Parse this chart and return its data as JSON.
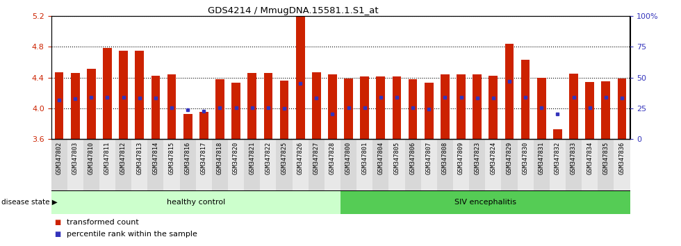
{
  "title": "GDS4214 / MmugDNA.15581.1.S1_at",
  "ylim": [
    3.6,
    5.2
  ],
  "yticks_left": [
    3.6,
    4.0,
    4.4,
    4.8,
    5.2
  ],
  "yticks_right_vals": [
    0,
    25,
    50,
    75,
    100
  ],
  "yticks_right_labels": [
    "0",
    "25",
    "50",
    "75",
    "100%"
  ],
  "bar_bottom": 3.6,
  "bar_color": "#cc2200",
  "dot_color": "#3333bb",
  "samples": [
    "GSM347802",
    "GSM347803",
    "GSM347810",
    "GSM347811",
    "GSM347812",
    "GSM347813",
    "GSM347814",
    "GSM347815",
    "GSM347816",
    "GSM347817",
    "GSM347818",
    "GSM347820",
    "GSM347821",
    "GSM347822",
    "GSM347825",
    "GSM347826",
    "GSM347827",
    "GSM347828",
    "GSM347800",
    "GSM347801",
    "GSM347804",
    "GSM347805",
    "GSM347806",
    "GSM347807",
    "GSM347808",
    "GSM347809",
    "GSM347823",
    "GSM347824",
    "GSM347829",
    "GSM347830",
    "GSM347831",
    "GSM347832",
    "GSM347833",
    "GSM347834",
    "GSM347835",
    "GSM347836"
  ],
  "bar_values": [
    4.47,
    4.46,
    4.51,
    4.78,
    4.75,
    4.75,
    4.42,
    4.44,
    3.93,
    3.95,
    4.38,
    4.33,
    4.46,
    4.46,
    4.36,
    5.19,
    4.47,
    4.44,
    4.39,
    4.41,
    4.41,
    4.41,
    4.38,
    4.33,
    4.44,
    4.44,
    4.44,
    4.42,
    4.84,
    4.63,
    4.4,
    3.73,
    4.45,
    4.34,
    4.35,
    4.39
  ],
  "dot_values": [
    4.11,
    4.12,
    4.14,
    4.14,
    4.14,
    4.13,
    4.13,
    4.01,
    3.98,
    3.96,
    4.01,
    4.01,
    4.01,
    4.01,
    4.0,
    4.32,
    4.13,
    3.93,
    4.01,
    4.01,
    4.14,
    4.14,
    4.01,
    3.99,
    4.14,
    4.14,
    4.13,
    4.13,
    4.35,
    4.14,
    4.01,
    3.93,
    4.14,
    4.01,
    4.14,
    4.13
  ],
  "healthy_count": 18,
  "healthy_label": "healthy control",
  "siv_label": "SIV encephalitis",
  "healthy_color": "#ccffcc",
  "siv_color": "#55cc55",
  "disease_state_label": "disease state",
  "legend_bar_label": "transformed count",
  "legend_dot_label": "percentile rank within the sample",
  "left_tick_color": "#cc2200",
  "right_tick_color": "#3333bb",
  "xtick_bg_even": "#d8d8d8",
  "xtick_bg_odd": "#e8e8e8",
  "bar_width": 0.55,
  "figsize": [
    9.8,
    3.54
  ],
  "dpi": 100
}
